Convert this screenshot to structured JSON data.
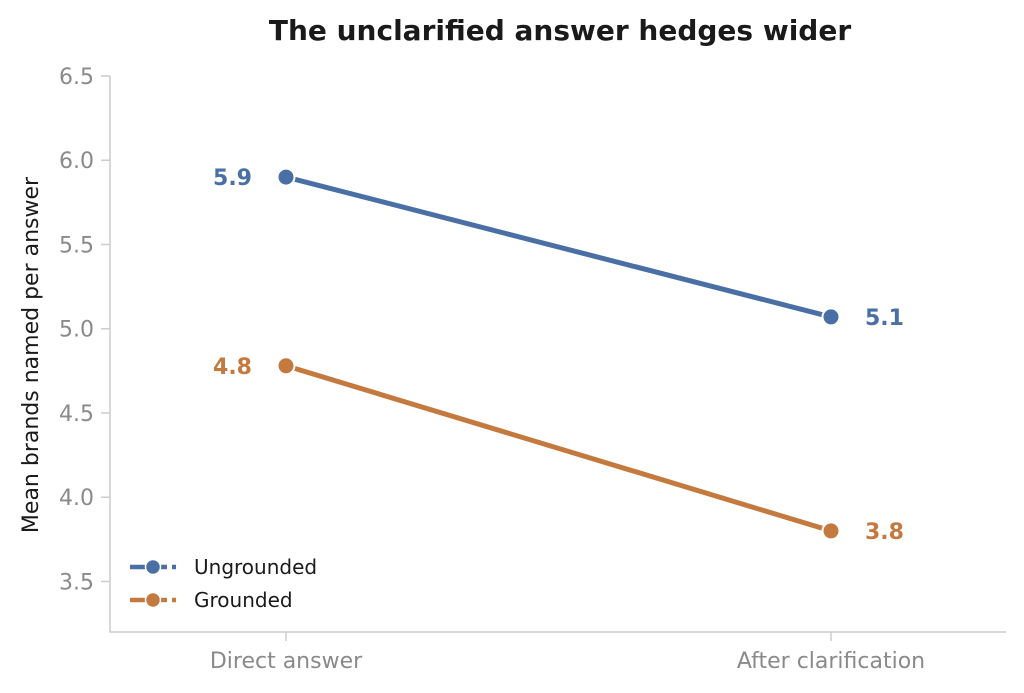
{
  "chart_data": {
    "type": "line",
    "title": "The unclarified answer hedges wider",
    "xlabel": "",
    "ylabel": "Mean brands named per answer",
    "categories": [
      "Direct answer",
      "After clarification"
    ],
    "ylim": [
      3.2,
      6.5
    ],
    "yticks": [
      "3.5",
      "4.0",
      "4.5",
      "5.0",
      "5.5",
      "6.0",
      "6.5"
    ],
    "grid": false,
    "legend_position": "bottom-left",
    "series": [
      {
        "name": "Ungrounded",
        "color": "#4a6fa5",
        "values": [
          5.9,
          5.07
        ],
        "labels": [
          "5.9",
          "5.1"
        ]
      },
      {
        "name": "Grounded",
        "color": "#c47a3f",
        "values": [
          4.78,
          3.8
        ],
        "labels": [
          "4.8",
          "3.8"
        ]
      }
    ]
  }
}
